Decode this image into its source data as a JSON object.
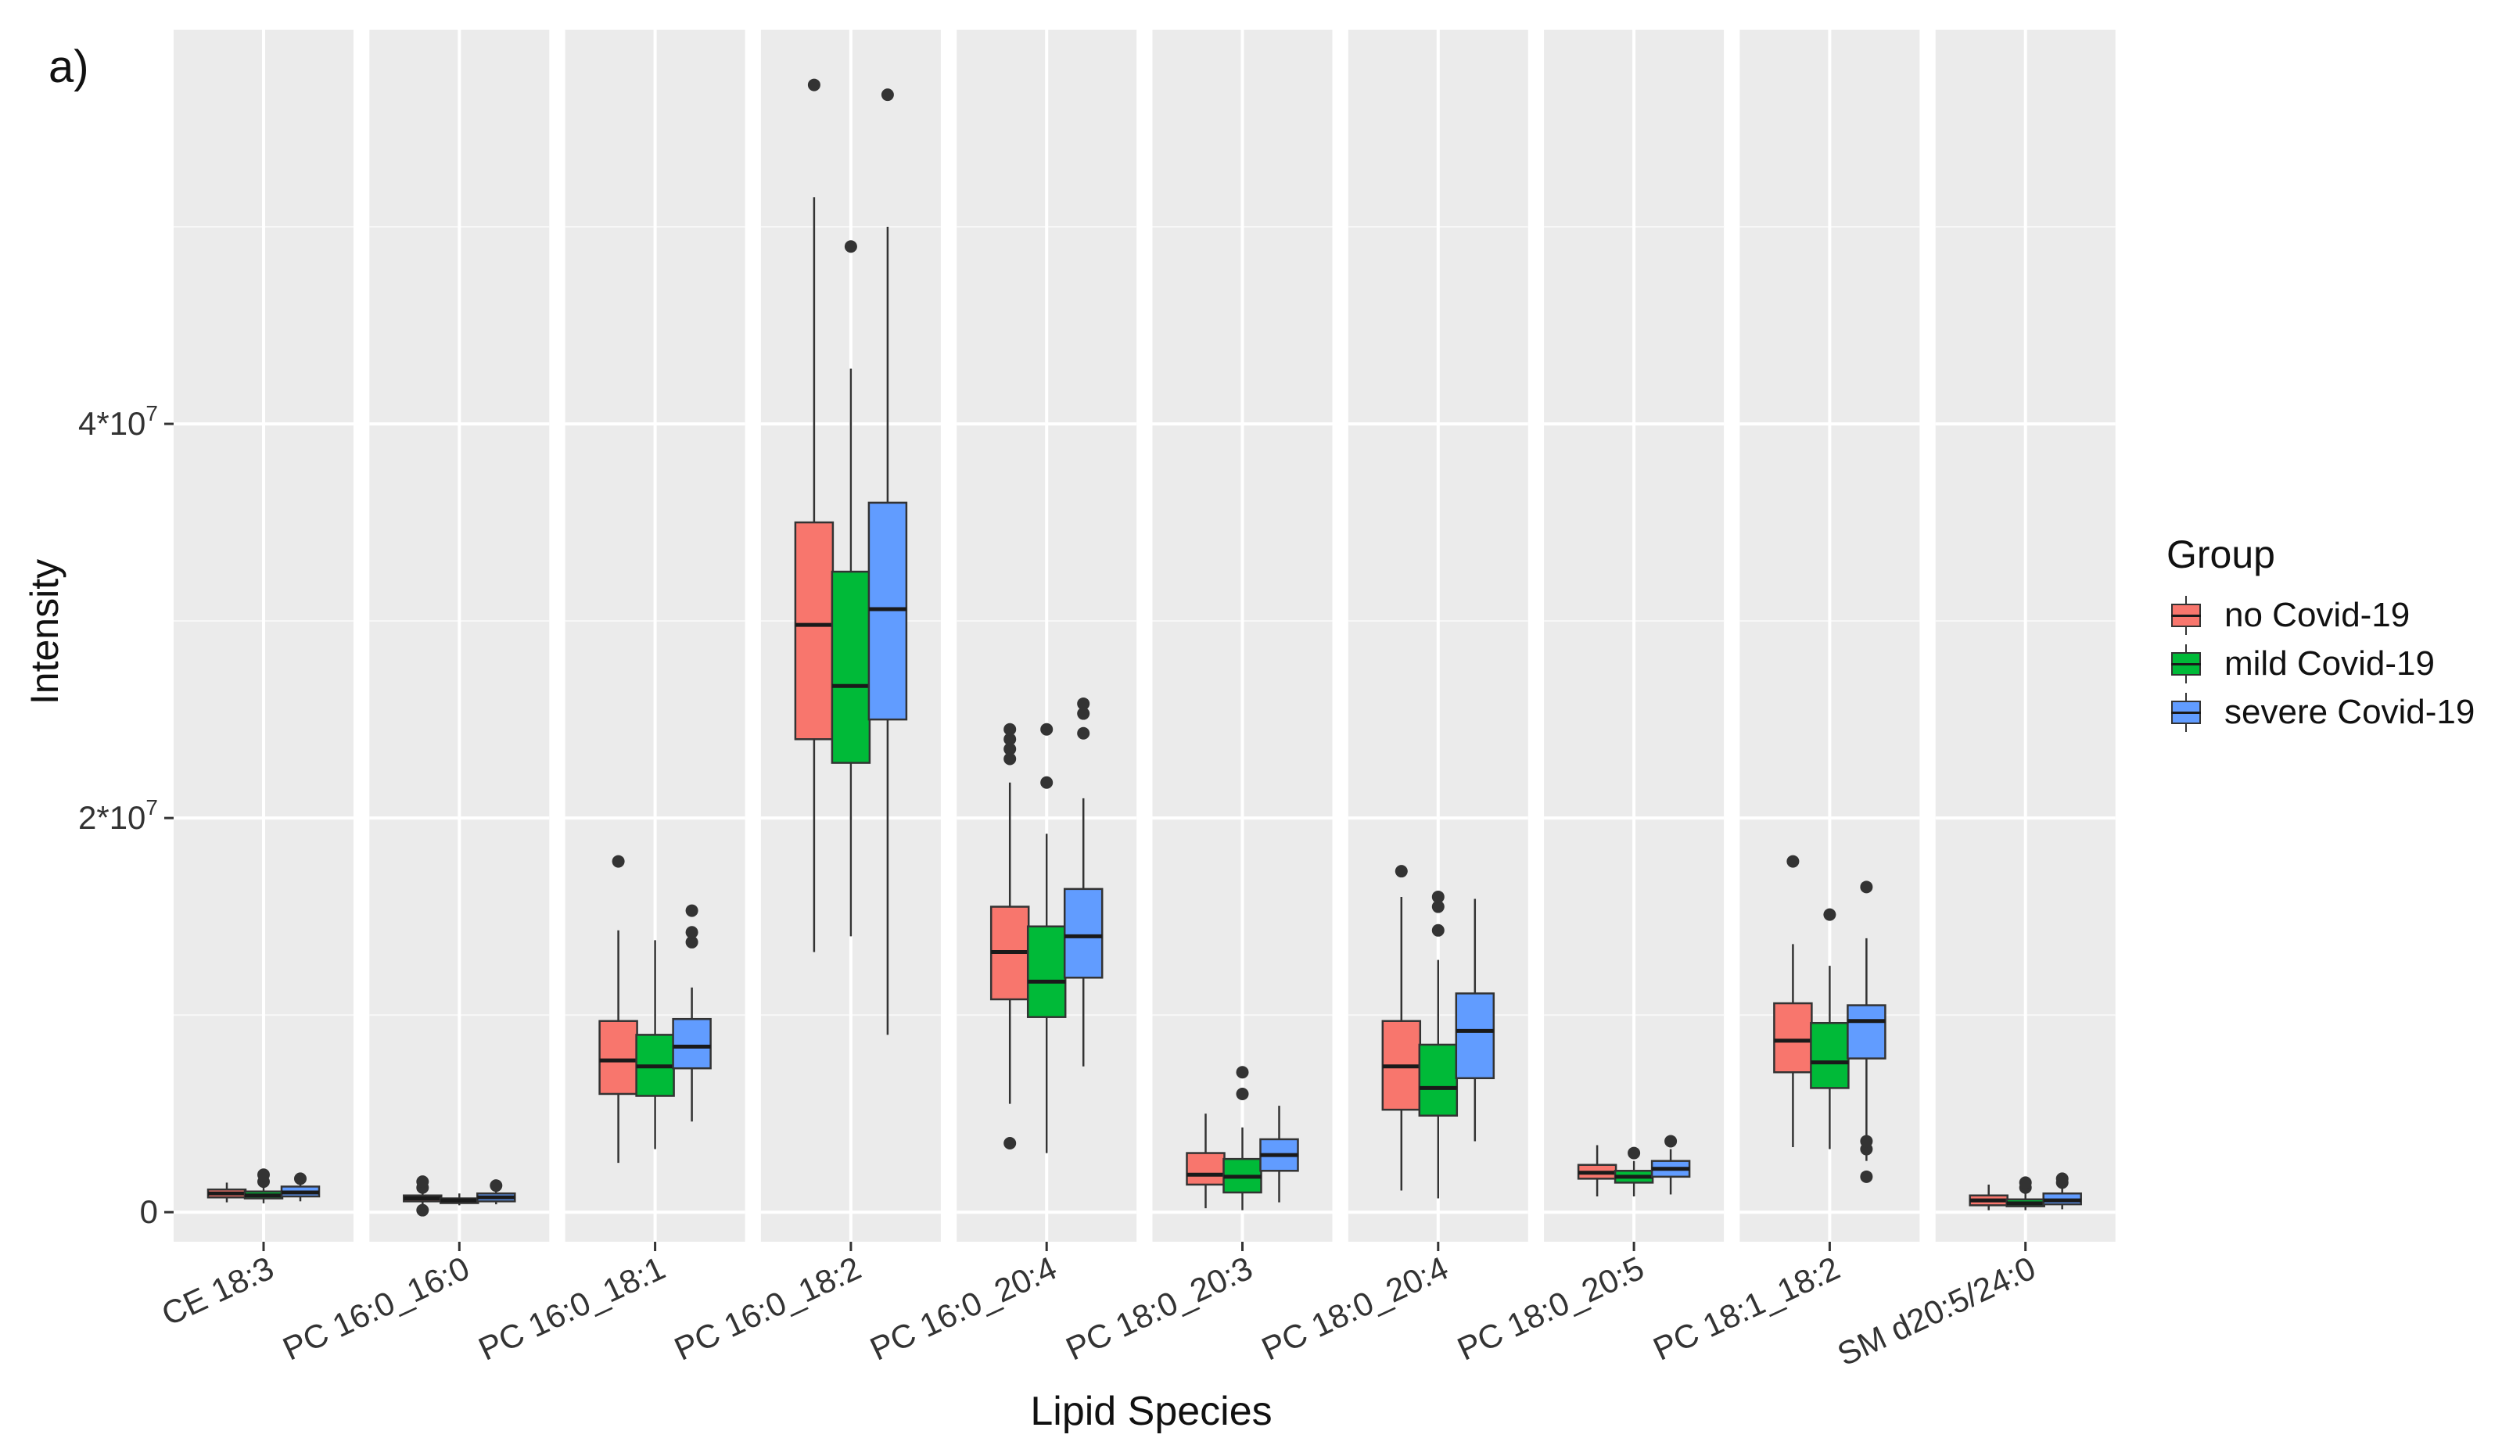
{
  "panel_label": "a)",
  "chart_data": {
    "type": "boxplot",
    "title": "",
    "xlabel": "Lipid Species",
    "ylabel": "Intensity",
    "ylim": [
      -1500000,
      60000000
    ],
    "y_ticks": [
      {
        "value": 0,
        "label": "0"
      },
      {
        "value": 20000000,
        "label": "2*10",
        "sup": "7"
      },
      {
        "value": 40000000,
        "label": "4*10",
        "sup": "7"
      }
    ],
    "grid": true,
    "legend": {
      "title": "Group",
      "position": "right",
      "items": [
        {
          "name": "no Covid-19",
          "color": "#F8766D"
        },
        {
          "name": "mild Covid-19",
          "color": "#00BA38"
        },
        {
          "name": "severe Covid-19",
          "color": "#619CFF"
        }
      ]
    },
    "categories": [
      "CE 18:3",
      "PC 16:0_16:0",
      "PC 16:0_18:1",
      "PC 16:0_18:2",
      "PC 16:0_20:4",
      "PC 18:0_20:3",
      "PC 18:0_20:4",
      "PC 18:0_20:5",
      "PC 18:1_18:2",
      "SM d20:5/24:0"
    ],
    "series": [
      {
        "name": "no Covid-19",
        "boxes": [
          {
            "q1": 750000,
            "median": 950000,
            "q3": 1150000,
            "whisker_low": 500000,
            "whisker_high": 1500000,
            "outliers": []
          },
          {
            "q1": 550000,
            "median": 700000,
            "q3": 850000,
            "whisker_low": 350000,
            "whisker_high": 1050000,
            "outliers": [
              100000,
              1250000,
              1550000
            ]
          },
          {
            "q1": 6000000,
            "median": 7700000,
            "q3": 9700000,
            "whisker_low": 2500000,
            "whisker_high": 14300000,
            "outliers": [
              17800000
            ]
          },
          {
            "q1": 24000000,
            "median": 29800000,
            "q3": 35000000,
            "whisker_low": 13200000,
            "whisker_high": 51500000,
            "outliers": [
              57200000
            ]
          },
          {
            "q1": 10800000,
            "median": 13200000,
            "q3": 15500000,
            "whisker_low": 5500000,
            "whisker_high": 21800000,
            "outliers": [
              3500000,
              23000000,
              23500000,
              24000000,
              24500000
            ]
          },
          {
            "q1": 1400000,
            "median": 1900000,
            "q3": 3000000,
            "whisker_low": 200000,
            "whisker_high": 5000000,
            "outliers": []
          },
          {
            "q1": 5200000,
            "median": 7400000,
            "q3": 9700000,
            "whisker_low": 1100000,
            "whisker_high": 16000000,
            "outliers": [
              17300000
            ]
          },
          {
            "q1": 1700000,
            "median": 2000000,
            "q3": 2400000,
            "whisker_low": 800000,
            "whisker_high": 3400000,
            "outliers": []
          },
          {
            "q1": 7100000,
            "median": 8700000,
            "q3": 10600000,
            "whisker_low": 3300000,
            "whisker_high": 13600000,
            "outliers": [
              17800000
            ]
          },
          {
            "q1": 350000,
            "median": 600000,
            "q3": 850000,
            "whisker_low": 100000,
            "whisker_high": 1400000,
            "outliers": []
          }
        ]
      },
      {
        "name": "mild Covid-19",
        "boxes": [
          {
            "q1": 700000,
            "median": 850000,
            "q3": 1050000,
            "whisker_low": 450000,
            "whisker_high": 1250000,
            "outliers": [
              1550000,
              1900000
            ]
          },
          {
            "q1": 500000,
            "median": 600000,
            "q3": 700000,
            "whisker_low": 350000,
            "whisker_high": 950000,
            "outliers": []
          },
          {
            "q1": 5900000,
            "median": 7400000,
            "q3": 9000000,
            "whisker_low": 3200000,
            "whisker_high": 13800000,
            "outliers": []
          },
          {
            "q1": 22800000,
            "median": 26700000,
            "q3": 32500000,
            "whisker_low": 14000000,
            "whisker_high": 42800000,
            "outliers": [
              49000000
            ]
          },
          {
            "q1": 9900000,
            "median": 11700000,
            "q3": 14500000,
            "whisker_low": 3000000,
            "whisker_high": 19200000,
            "outliers": [
              21800000,
              24500000
            ]
          },
          {
            "q1": 1000000,
            "median": 1800000,
            "q3": 2700000,
            "whisker_low": 100000,
            "whisker_high": 4300000,
            "outliers": [
              6000000,
              7100000
            ]
          },
          {
            "q1": 4900000,
            "median": 6300000,
            "q3": 8500000,
            "whisker_low": 700000,
            "whisker_high": 12800000,
            "outliers": [
              14300000,
              15500000,
              16000000
            ]
          },
          {
            "q1": 1500000,
            "median": 1800000,
            "q3": 2100000,
            "whisker_low": 800000,
            "whisker_high": 2600000,
            "outliers": [
              3000000
            ]
          },
          {
            "q1": 6300000,
            "median": 7600000,
            "q3": 9600000,
            "whisker_low": 3200000,
            "whisker_high": 12500000,
            "outliers": [
              15100000
            ]
          },
          {
            "q1": 300000,
            "median": 450000,
            "q3": 650000,
            "whisker_low": 100000,
            "whisker_high": 1100000,
            "outliers": [
              1250000,
              1500000
            ]
          }
        ]
      },
      {
        "name": "severe Covid-19",
        "boxes": [
          {
            "q1": 800000,
            "median": 1000000,
            "q3": 1300000,
            "whisker_low": 550000,
            "whisker_high": 1500000,
            "outliers": [
              1700000
            ]
          },
          {
            "q1": 550000,
            "median": 750000,
            "q3": 950000,
            "whisker_low": 400000,
            "whisker_high": 1150000,
            "outliers": [
              1350000
            ]
          },
          {
            "q1": 7300000,
            "median": 8400000,
            "q3": 9800000,
            "whisker_low": 4600000,
            "whisker_high": 11400000,
            "outliers": [
              13700000,
              14200000,
              15300000
            ]
          },
          {
            "q1": 25000000,
            "median": 30600000,
            "q3": 36000000,
            "whisker_low": 9000000,
            "whisker_high": 50000000,
            "outliers": [
              56700000
            ]
          },
          {
            "q1": 11900000,
            "median": 14000000,
            "q3": 16400000,
            "whisker_low": 7400000,
            "whisker_high": 21000000,
            "outliers": [
              24300000,
              25300000,
              25800000
            ]
          },
          {
            "q1": 2100000,
            "median": 2900000,
            "q3": 3700000,
            "whisker_low": 500000,
            "whisker_high": 5400000,
            "outliers": []
          },
          {
            "q1": 6800000,
            "median": 9200000,
            "q3": 11100000,
            "whisker_low": 3600000,
            "whisker_high": 15900000,
            "outliers": []
          },
          {
            "q1": 1800000,
            "median": 2200000,
            "q3": 2600000,
            "whisker_low": 900000,
            "whisker_high": 3200000,
            "outliers": [
              3600000
            ]
          },
          {
            "q1": 7800000,
            "median": 9700000,
            "q3": 10500000,
            "whisker_low": 2600000,
            "whisker_high": 13900000,
            "outliers": [
              1800000,
              3200000,
              3600000,
              16500000
            ]
          },
          {
            "q1": 400000,
            "median": 600000,
            "q3": 950000,
            "whisker_low": 150000,
            "whisker_high": 1350000,
            "outliers": [
              1500000,
              1700000
            ]
          }
        ]
      }
    ]
  }
}
